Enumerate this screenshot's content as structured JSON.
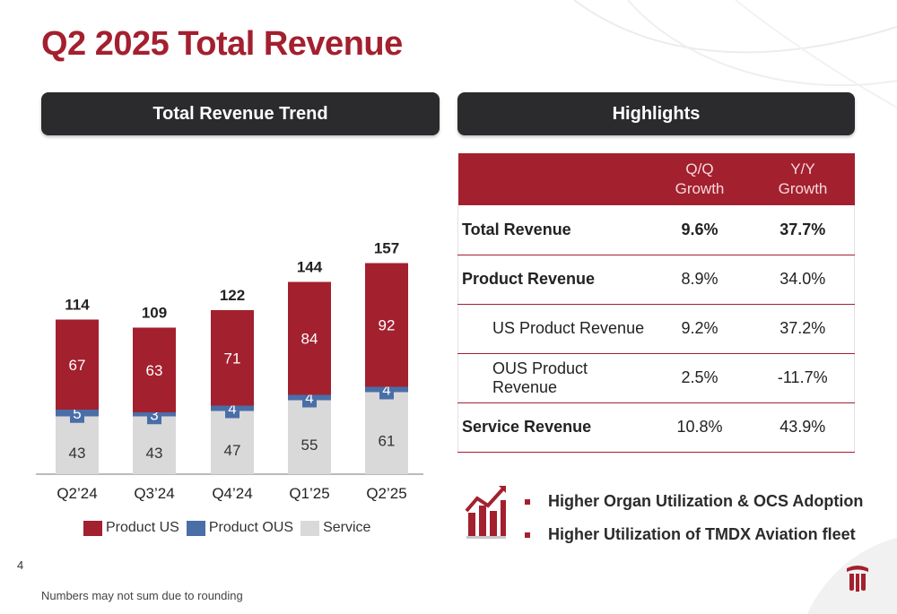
{
  "title": "Q2 2025 Total Revenue",
  "left_header": "Total Revenue Trend",
  "right_header": "Highlights",
  "colors": {
    "brand": "#a3202f",
    "product_us": "#a3202f",
    "product_ous": "#4a6ea8",
    "service": "#d9d9d9",
    "header_bg": "#2b2b2d"
  },
  "chart_data": {
    "type": "bar",
    "stacked": true,
    "categories": [
      "Q2’24",
      "Q3’24",
      "Q4’24",
      "Q1’25",
      "Q2’25"
    ],
    "series": [
      {
        "name": "Service",
        "values": [
          43,
          43,
          47,
          55,
          61
        ]
      },
      {
        "name": "Product OUS",
        "values": [
          5,
          3,
          4,
          4,
          4
        ]
      },
      {
        "name": "Product US",
        "values": [
          67,
          63,
          71,
          84,
          92
        ]
      }
    ],
    "totals": [
      114,
      109,
      122,
      144,
      157
    ],
    "legend_position": "bottom",
    "grid": false
  },
  "highlights": {
    "columns": [
      "Q/Q Growth",
      "Y/Y Growth"
    ],
    "rows": [
      {
        "label": "Total Revenue",
        "qq": "9.6%",
        "yy": "37.7%"
      },
      {
        "label": "Product Revenue",
        "qq": "8.9%",
        "yy": "34.0%"
      },
      {
        "label": "US Product Revenue",
        "qq": "9.2%",
        "yy": "37.2%"
      },
      {
        "label": "OUS Product Revenue",
        "qq": "2.5%",
        "yy": "-11.7%"
      },
      {
        "label": "Service Revenue",
        "qq": "10.8%",
        "yy": "43.9%"
      }
    ]
  },
  "bullets": [
    "Higher Organ Utilization & OCS Adoption",
    "Higher Utilization of TMDX Aviation fleet"
  ],
  "icons": {
    "trend": "chart-growth-icon",
    "logo": "company-logo"
  },
  "page_number": "4",
  "footnote": "Numbers may not sum due to rounding"
}
